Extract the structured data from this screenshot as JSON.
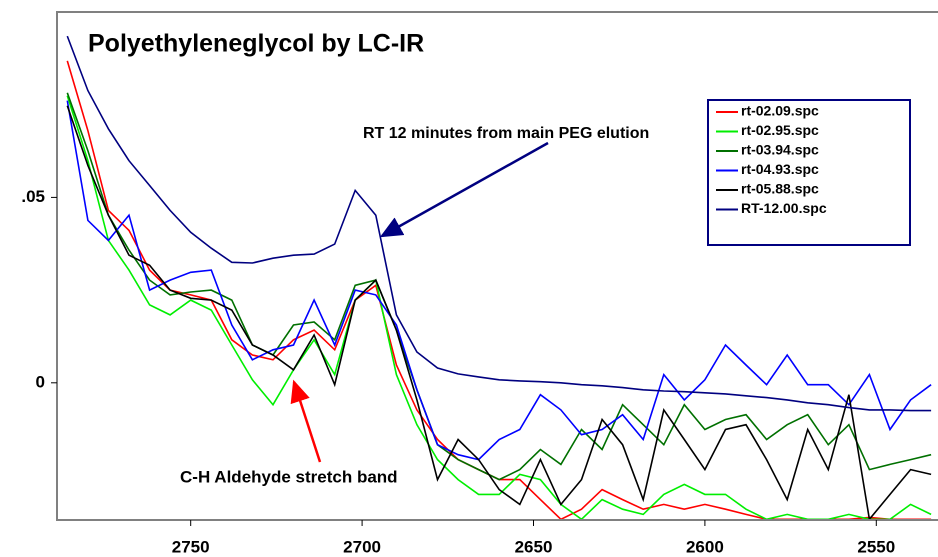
{
  "chart_data": {
    "type": "line",
    "title": "Polyethyleneglycol by LC-IR",
    "annotations": [
      {
        "text": "RT 12 minutes from main PEG elution",
        "color": "#000080"
      },
      {
        "text": "C-H Aldehyde stretch band",
        "color": "#ff0000"
      }
    ],
    "legend": "upper right",
    "xlim": [
      2789,
      2532
    ],
    "xticks": [
      2750,
      2700,
      2650,
      2600,
      2550
    ],
    "ylim": [
      -0.037,
      0.1
    ],
    "yticks": [
      0,
      {
        "value": 0.05,
        "label": ".05"
      }
    ],
    "x": [
      2786,
      2780,
      2774,
      2768,
      2762,
      2756,
      2750,
      2744,
      2738,
      2732,
      2726,
      2720,
      2714,
      2708,
      2702,
      2696,
      2690,
      2684,
      2678,
      2672,
      2666,
      2660,
      2654,
      2648,
      2642,
      2636,
      2630,
      2624,
      2618,
      2612,
      2606,
      2600,
      2594,
      2588,
      2582,
      2576,
      2570,
      2564,
      2558,
      2552,
      2546,
      2540,
      2534
    ],
    "series": [
      {
        "name": "rt-02.09.spc",
        "color": "#ff0000",
        "values": [
          0.0868,
          0.068,
          0.0465,
          0.0411,
          0.0304,
          0.025,
          0.0237,
          0.0223,
          0.0116,
          0.0075,
          0.0062,
          0.0116,
          0.0142,
          0.0089,
          0.0223,
          0.0263,
          0.0048,
          -0.0073,
          -0.0153,
          -0.0207,
          -0.0234,
          -0.0261,
          -0.0261,
          -0.0315,
          -0.0368,
          -0.0341,
          -0.0288,
          -0.0315,
          -0.0341,
          -0.0328,
          -0.0341,
          -0.0328,
          -0.0341,
          -0.0355,
          -0.0368,
          -0.0368,
          -0.0368,
          -0.0368,
          -0.0368,
          -0.0363,
          -0.0368,
          -0.0368,
          -0.0368
        ]
      },
      {
        "name": "rt-02.95.spc",
        "color": "#00ee00",
        "values": [
          0.0774,
          0.0599,
          0.0384,
          0.0304,
          0.021,
          0.0183,
          0.0223,
          0.0196,
          0.0102,
          0.0008,
          -0.0059,
          0.0035,
          0.0116,
          0.0022,
          0.0223,
          0.0277,
          0.0022,
          -0.0113,
          -0.0207,
          -0.0261,
          -0.0301,
          -0.0301,
          -0.0247,
          -0.0261,
          -0.0328,
          -0.0368,
          -0.0315,
          -0.0341,
          -0.0355,
          -0.0301,
          -0.0274,
          -0.0301,
          -0.0301,
          -0.0341,
          -0.0368,
          -0.0355,
          -0.0368,
          -0.0368,
          -0.0355,
          -0.0368,
          -0.0368,
          -0.0328,
          -0.0355
        ]
      },
      {
        "name": "rt-03.94.spc",
        "color": "#007000",
        "values": [
          0.0782,
          0.0626,
          0.0452,
          0.0358,
          0.0277,
          0.0237,
          0.0245,
          0.025,
          0.0223,
          0.0102,
          0.0075,
          0.0156,
          0.0164,
          0.0116,
          0.0263,
          0.0277,
          0.0142,
          -0.0019,
          -0.0167,
          -0.0207,
          -0.0234,
          -0.0261,
          -0.0234,
          -0.018,
          -0.022,
          -0.0126,
          -0.018,
          -0.0059,
          -0.0113,
          -0.0167,
          -0.0059,
          -0.0126,
          -0.0099,
          -0.0086,
          -0.0153,
          -0.0113,
          -0.0086,
          -0.0167,
          -0.0113,
          -0.0234,
          -0.022,
          -0.0207,
          -0.0194
        ]
      },
      {
        "name": "rt-04.93.spc",
        "color": "#0000ff",
        "values": [
          0.0761,
          0.0438,
          0.0384,
          0.0452,
          0.025,
          0.0277,
          0.0298,
          0.0304,
          0.0156,
          0.0062,
          0.0089,
          0.0102,
          0.0223,
          0.0102,
          0.025,
          0.0237,
          0.0156,
          -0.0019,
          -0.0167,
          -0.0194,
          -0.0207,
          -0.0153,
          -0.0126,
          -0.0032,
          -0.0073,
          -0.014,
          -0.0126,
          -0.0086,
          -0.0153,
          0.0022,
          -0.0046,
          0.0008,
          0.0102,
          0.0048,
          -0.0005,
          0.0075,
          -0.0005,
          -0.0005,
          -0.0059,
          0.0022,
          -0.0126,
          -0.0046,
          -0.0005
        ]
      },
      {
        "name": "rt-05.88.spc",
        "color": "#000000",
        "values": [
          0.0747,
          0.0586,
          0.0452,
          0.0344,
          0.0317,
          0.025,
          0.0228,
          0.0223,
          0.0196,
          0.0102,
          0.0075,
          0.0035,
          0.0129,
          -0.0005,
          0.0223,
          0.0277,
          0.0142,
          -0.0046,
          -0.0261,
          -0.0153,
          -0.0207,
          -0.0288,
          -0.0328,
          -0.0207,
          -0.0328,
          -0.0261,
          -0.0099,
          -0.0167,
          -0.0315,
          -0.0073,
          -0.0153,
          -0.0234,
          -0.0126,
          -0.0113,
          -0.0207,
          -0.0315,
          -0.0126,
          -0.0234,
          -0.0032,
          -0.0368,
          -0.0301,
          -0.0234,
          -0.0247
        ]
      },
      {
        "name": "RT-12.00.spc",
        "color": "#000080",
        "values": [
          0.0935,
          0.0788,
          0.0685,
          0.0599,
          0.0532,
          0.0465,
          0.0406,
          0.0363,
          0.0325,
          0.0323,
          0.0336,
          0.0344,
          0.0347,
          0.0374,
          0.0519,
          0.0452,
          0.0183,
          0.0083,
          0.004,
          0.0024,
          0.0016,
          0.0008,
          0.0005,
          0.0003,
          0,
          -0.0005,
          -0.0008,
          -0.0013,
          -0.0019,
          -0.0022,
          -0.0024,
          -0.0027,
          -0.003,
          -0.0035,
          -0.004,
          -0.0046,
          -0.0054,
          -0.0059,
          -0.0067,
          -0.0073,
          -0.0073,
          -0.0075,
          -0.0075
        ]
      }
    ]
  }
}
